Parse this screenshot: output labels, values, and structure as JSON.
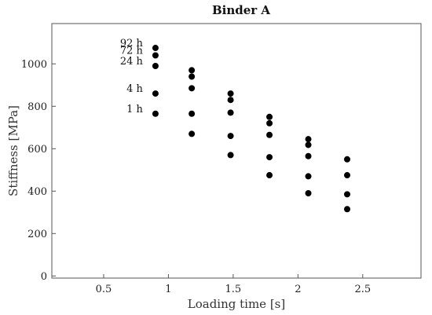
{
  "chart_data": {
    "type": "scatter",
    "title": "Binder A",
    "xlabel": "Loading time [s]",
    "ylabel": "Stiffness [MPa]",
    "xlim": [
      0.1,
      2.95
    ],
    "ylim": [
      -10,
      1190
    ],
    "x_ticks": [
      "0.5",
      "1",
      "1.5",
      "2",
      "2.5"
    ],
    "x_tick_values": [
      0.5,
      1,
      1.5,
      2,
      2.5
    ],
    "y_ticks": [
      "0",
      "200",
      "400",
      "600",
      "800",
      "1000"
    ],
    "y_tick_values": [
      0,
      200,
      400,
      600,
      800,
      1000
    ],
    "grid": false,
    "marker_color": "#000000",
    "series": [
      {
        "x": [
          0.9,
          1.18,
          1.48,
          1.78,
          2.08,
          2.38
        ],
        "values": [
          1075,
          970,
          860,
          750,
          645,
          550
        ]
      },
      {
        "x": [
          0.9,
          1.18,
          1.48,
          1.78,
          2.08,
          2.38
        ],
        "values": [
          1040,
          940,
          830,
          720,
          618,
          475
        ]
      },
      {
        "x": [
          0.9,
          1.18,
          1.48,
          1.78,
          2.08,
          2.38
        ],
        "values": [
          990,
          885,
          770,
          665,
          565,
          385
        ]
      },
      {
        "x": [
          0.9,
          1.18,
          1.48,
          1.78,
          2.08,
          2.38
        ],
        "values": [
          860,
          765,
          660,
          560,
          470,
          315
        ]
      },
      {
        "x": [
          0.9,
          1.18,
          1.48,
          1.78,
          2.08
        ],
        "values": [
          765,
          670,
          570,
          475,
          390
        ]
      }
    ],
    "annotations": [
      {
        "text": "92 h",
        "x": 0.9,
        "y": 1075
      },
      {
        "text": "72 h",
        "x": 0.9,
        "y": 1040
      },
      {
        "text": "24 h",
        "x": 0.9,
        "y": 990
      },
      {
        "text": "4 h",
        "x": 0.9,
        "y": 860
      },
      {
        "text": "1 h",
        "x": 0.9,
        "y": 765
      }
    ]
  }
}
